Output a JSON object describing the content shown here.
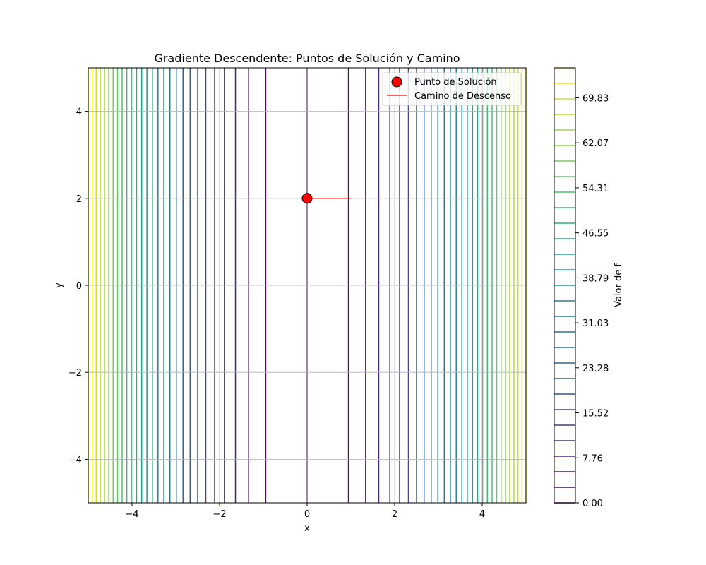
{
  "chart_data": {
    "type": "contour",
    "title": "Gradiente Descendente: Puntos de Solución y Camino",
    "xlabel": "x",
    "ylabel": "y",
    "xlim": [
      -5,
      5
    ],
    "ylim": [
      -5,
      5
    ],
    "grid": true,
    "x_ticks": [
      -4,
      -2,
      0,
      2,
      4
    ],
    "y_ticks": [
      -4,
      -2,
      0,
      2,
      4
    ],
    "x_tick_labels": [
      "−4",
      "−2",
      "0",
      "2",
      "4"
    ],
    "y_tick_labels": [
      "−4",
      "−2",
      "0",
      "2",
      "4"
    ],
    "contour": {
      "function": "f = 3x²",
      "level_min": 0,
      "level_max": 75,
      "n_levels": 29,
      "colormap": "viridis"
    },
    "colorbar": {
      "label": "Valor de f",
      "ticks": [
        0.0,
        7.76,
        15.52,
        23.28,
        31.03,
        38.79,
        46.55,
        54.31,
        62.07,
        69.83
      ],
      "tick_labels": [
        "0.00",
        "7.76",
        "15.52",
        "23.28",
        "31.03",
        "38.79",
        "46.55",
        "54.31",
        "62.07",
        "69.83"
      ]
    },
    "series": [
      {
        "name": "Punto de Solución",
        "kind": "scatter",
        "x": [
          0
        ],
        "y": [
          2
        ],
        "color": "#ff0000"
      },
      {
        "name": "Camino de Descenso",
        "kind": "line",
        "x": [
          1,
          0
        ],
        "y": [
          2,
          2
        ],
        "color": "#ff0000"
      }
    ],
    "legend_position": "top-right"
  }
}
